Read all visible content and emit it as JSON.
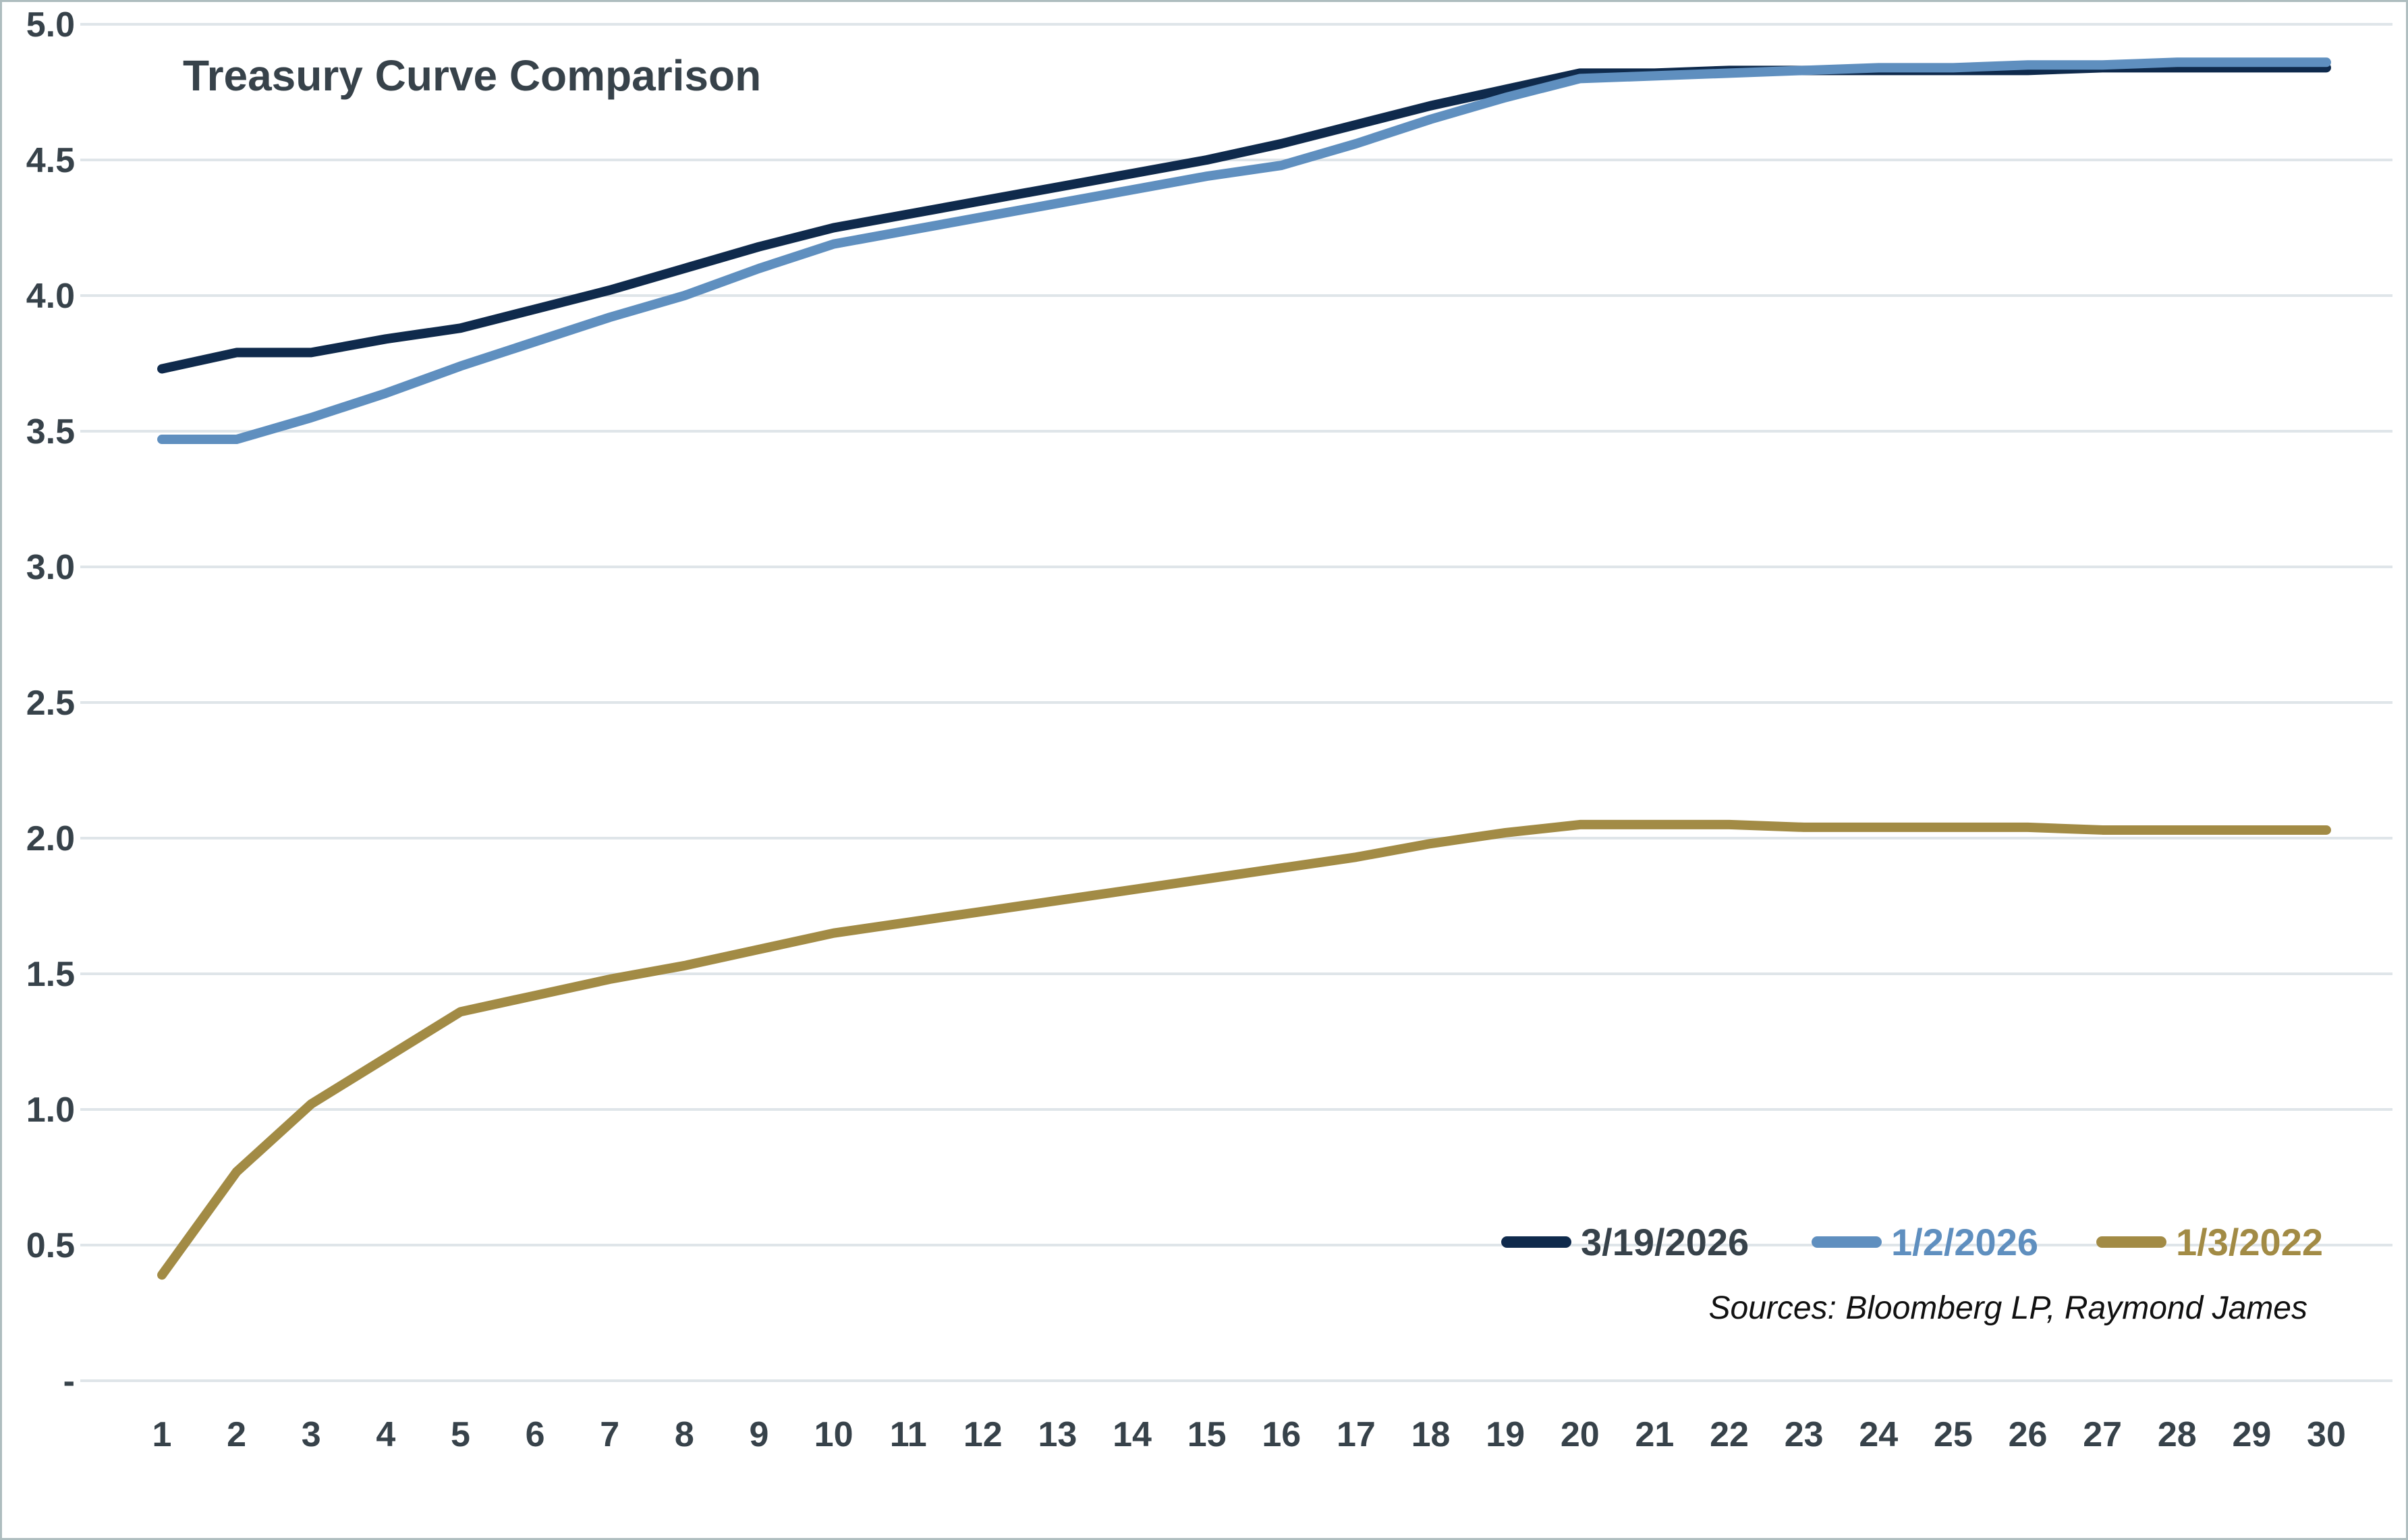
{
  "title": "Treasury Curve Comparison",
  "sources_note": "Sources: Bloomberg LP, Raymond James",
  "legend": [
    {
      "label": "3/19/2026",
      "color": "#0f2a4c",
      "text_color": "#37424a"
    },
    {
      "label": "1/2/2026",
      "color": "#5f8fbf",
      "text_color": "#5f8fbf"
    },
    {
      "label": "1/3/2022",
      "color": "#a28b45",
      "text_color": "#a28b45"
    }
  ],
  "axes": {
    "text_color": "#37424a",
    "gridline_color": "#dfe5e9",
    "y_tick_labels": [
      "5.0",
      "4.5",
      "4.0",
      "3.5",
      "3.0",
      "2.5",
      "2.0",
      "1.5",
      "1.0",
      "0.5",
      "-"
    ],
    "y_tick_values": [
      5.0,
      4.5,
      4.0,
      3.5,
      3.0,
      2.5,
      2.0,
      1.5,
      1.0,
      0.5,
      0.0
    ],
    "x_tick_labels": [
      "1",
      "2",
      "3",
      "4",
      "5",
      "6",
      "7",
      "8",
      "9",
      "10",
      "11",
      "12",
      "13",
      "14",
      "15",
      "16",
      "17",
      "18",
      "19",
      "20",
      "21",
      "22",
      "23",
      "24",
      "25",
      "26",
      "27",
      "28",
      "29",
      "30"
    ]
  },
  "chart_data": {
    "type": "line",
    "title": "Treasury Curve Comparison",
    "xlabel": "",
    "ylabel": "",
    "x": [
      1,
      2,
      3,
      4,
      5,
      6,
      7,
      8,
      9,
      10,
      11,
      12,
      13,
      14,
      15,
      16,
      17,
      18,
      19,
      20,
      21,
      22,
      23,
      24,
      25,
      26,
      27,
      28,
      29,
      30
    ],
    "ylim": [
      0,
      5
    ],
    "y_ticks": [
      0,
      0.5,
      1.0,
      1.5,
      2.0,
      2.5,
      3.0,
      3.5,
      4.0,
      4.5,
      5.0
    ],
    "grid": "horizontal",
    "legend_position": "bottom-right",
    "series": [
      {
        "name": "3/19/2026",
        "color": "#0f2a4c",
        "values": [
          3.73,
          3.79,
          3.79,
          3.84,
          3.88,
          3.95,
          4.02,
          4.1,
          4.18,
          4.25,
          4.3,
          4.35,
          4.4,
          4.45,
          4.5,
          4.56,
          4.63,
          4.7,
          4.76,
          4.82,
          4.82,
          4.83,
          4.83,
          4.83,
          4.83,
          4.83,
          4.84,
          4.84,
          4.84,
          4.84
        ]
      },
      {
        "name": "1/2/2026",
        "color": "#5f8fbf",
        "values": [
          3.47,
          3.47,
          3.55,
          3.64,
          3.74,
          3.83,
          3.92,
          4.0,
          4.1,
          4.19,
          4.24,
          4.29,
          4.34,
          4.39,
          4.44,
          4.48,
          4.56,
          4.65,
          4.73,
          4.8,
          4.81,
          4.82,
          4.83,
          4.84,
          4.84,
          4.85,
          4.85,
          4.86,
          4.86,
          4.86
        ]
      },
      {
        "name": "1/3/2022",
        "color": "#a28b45",
        "values": [
          0.39,
          0.77,
          1.02,
          1.19,
          1.36,
          1.42,
          1.48,
          1.53,
          1.59,
          1.65,
          1.69,
          1.73,
          1.77,
          1.81,
          1.85,
          1.89,
          1.93,
          1.98,
          2.02,
          2.05,
          2.05,
          2.05,
          2.04,
          2.04,
          2.04,
          2.04,
          2.03,
          2.03,
          2.03,
          2.03
        ]
      }
    ],
    "annotations": [
      "Sources: Bloomberg LP, Raymond James"
    ]
  }
}
